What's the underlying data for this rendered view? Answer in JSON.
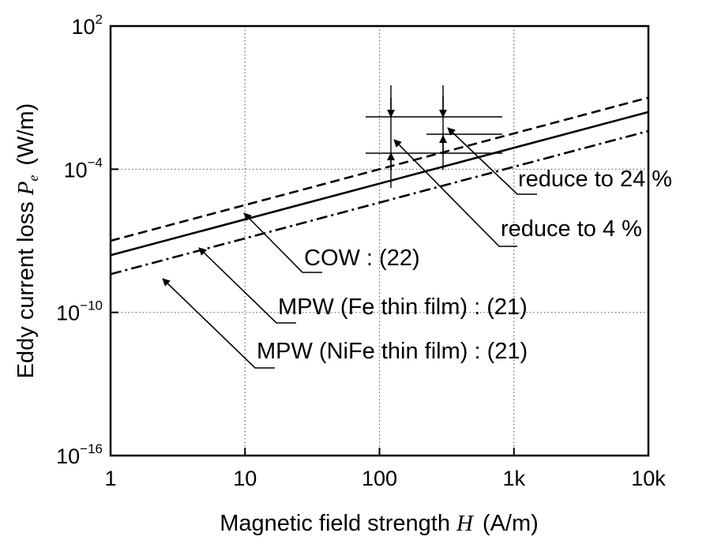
{
  "chart_data": {
    "type": "line",
    "xlabel": "Magnetic field strength",
    "xlabel_symbol": "H",
    "xlabel_unit": "(A/m)",
    "ylabel": "Eddy current loss",
    "ylabel_symbol": "P",
    "ylabel_subscript": "e",
    "ylabel_unit": "(W/m)",
    "x_scale": "log",
    "y_scale": "log",
    "xlim": [
      1,
      10000
    ],
    "ylim": [
      1e-16,
      100
    ],
    "grid": true,
    "x_ticks": [
      {
        "value": 1,
        "label": "1"
      },
      {
        "value": 10,
        "label": "10"
      },
      {
        "value": 100,
        "label": "100"
      },
      {
        "value": 1000,
        "label": "1k"
      },
      {
        "value": 10000,
        "label": "10k"
      }
    ],
    "y_ticks": [
      {
        "value": 1e-16,
        "base": "10",
        "exp": "−16"
      },
      {
        "value": 1e-10,
        "base": "10",
        "exp": "−10"
      },
      {
        "value": 0.0001,
        "base": "10",
        "exp": "−4"
      },
      {
        "value": 100,
        "base": "10",
        "exp": "2"
      }
    ],
    "series": [
      {
        "name": "COW : (22)",
        "style": "dashed",
        "x": [
          1,
          10000
        ],
        "y": [
          1e-07,
          0.1
        ]
      },
      {
        "name": "MPW (Fe thin film) : (21)",
        "style": "solid",
        "x": [
          1,
          10000
        ],
        "y": [
          2.5e-08,
          0.025
        ]
      },
      {
        "name": "MPW (NiFe thin film) : (21)",
        "style": "dashdot",
        "x": [
          1,
          10000
        ],
        "y": [
          4e-09,
          0.004
        ]
      }
    ],
    "annotations": [
      {
        "text": "reduce to 24 %"
      },
      {
        "text": "reduce to 4 %"
      }
    ]
  }
}
